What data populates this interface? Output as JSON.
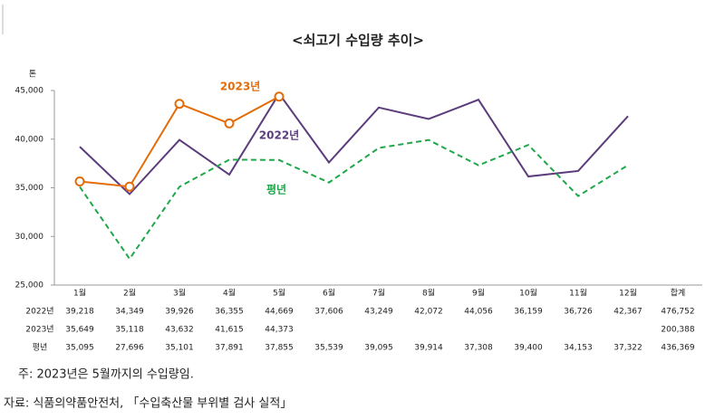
{
  "chart_data": {
    "type": "line",
    "title": "<쇠고기 수입량 추이>",
    "y_label": "톤",
    "categories": [
      "1월",
      "2월",
      "3월",
      "4월",
      "5월",
      "6월",
      "7월",
      "8월",
      "9월",
      "10월",
      "11월",
      "12월"
    ],
    "total_header": "합계",
    "series": [
      {
        "name": "2022년",
        "color": "#5b3c7c",
        "line_style": "solid",
        "marker": "none",
        "values": [
          39218,
          34349,
          39926,
          36355,
          44669,
          37606,
          43249,
          42072,
          44056,
          36159,
          36726,
          42367
        ],
        "value_labels": [
          "39,218",
          "34,349",
          "39,926",
          "36,355",
          "44,669",
          "37,606",
          "43,249",
          "42,072",
          "44,056",
          "36,159",
          "36,726",
          "42,367"
        ],
        "total": {
          "value": 476752,
          "label": "476,752"
        }
      },
      {
        "name": "2023년",
        "color": "#e36c09",
        "line_style": "solid",
        "marker": "circle",
        "values": [
          35649,
          35118,
          43632,
          41615,
          44373,
          null,
          null,
          null,
          null,
          null,
          null,
          null
        ],
        "value_labels": [
          "35,649",
          "35,118",
          "43,632",
          "41,615",
          "44,373",
          null,
          null,
          null,
          null,
          null,
          null,
          null
        ],
        "total": {
          "value": 200388,
          "label": "200,388"
        }
      },
      {
        "name": "평년",
        "color": "#1fa84a",
        "line_style": "dashed",
        "marker": "none",
        "values": [
          35095,
          27696,
          35101,
          37891,
          37855,
          35539,
          39095,
          39914,
          37308,
          39400,
          34153,
          37322
        ],
        "value_labels": [
          "35,095",
          "27,696",
          "35,101",
          "37,891",
          "37,855",
          "35,539",
          "39,095",
          "39,914",
          "37,308",
          "39,400",
          "34,153",
          "37,322"
        ],
        "total": {
          "value": 436369,
          "label": "436,369"
        }
      }
    ],
    "ylim": [
      25000,
      45000
    ],
    "yticks": [
      {
        "value": 25000,
        "label": "25,000"
      },
      {
        "value": 30000,
        "label": "30,000"
      },
      {
        "value": 35000,
        "label": "35,000"
      },
      {
        "value": 40000,
        "label": "40,000"
      },
      {
        "value": 45000,
        "label": "45,000"
      }
    ],
    "grid": false,
    "notes": [
      "주: 2023년은 5월까지의 수입량임.",
      "자료: 식품의약품안전처, 「수입축산물 부위별 검사 실적」"
    ]
  }
}
